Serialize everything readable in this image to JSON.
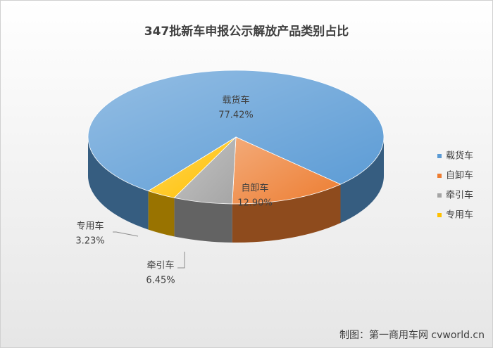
{
  "chart_data": {
    "type": "pie",
    "title": "347批新车申报公示解放产品类别占比",
    "categories": [
      "载货车",
      "自卸车",
      "牵引车",
      "专用车"
    ],
    "values": [
      77.42,
      12.9,
      6.45,
      3.23
    ],
    "value_labels": [
      "77.42%",
      "12.90%",
      "6.45%",
      "3.23%"
    ],
    "colors": [
      "#5b9bd5",
      "#ed7d31",
      "#a5a5a5",
      "#ffc000"
    ],
    "legend": "right"
  },
  "source": "制图：第一商用车网 cvworld.cn"
}
